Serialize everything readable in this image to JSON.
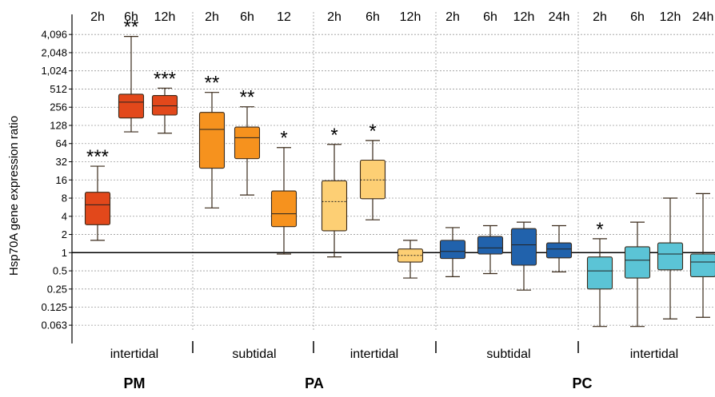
{
  "chart_data": {
    "type": "box",
    "ylabel": "Hsp70A gene expression ratio",
    "yscale": "log2",
    "ylim": [
      0.0452,
      6500
    ],
    "yticks": [
      {
        "value": 4096,
        "label": "4,096"
      },
      {
        "value": 2048,
        "label": "2,048"
      },
      {
        "value": 1024,
        "label": "1,024"
      },
      {
        "value": 512,
        "label": "512"
      },
      {
        "value": 256,
        "label": "256"
      },
      {
        "value": 128,
        "label": "128"
      },
      {
        "value": 64,
        "label": "64"
      },
      {
        "value": 32,
        "label": "32"
      },
      {
        "value": 16,
        "label": "16"
      },
      {
        "value": 8,
        "label": "8"
      },
      {
        "value": 4,
        "label": "4"
      },
      {
        "value": 2,
        "label": "2"
      },
      {
        "value": 1,
        "label": "1"
      },
      {
        "value": 0.5,
        "label": "0.5"
      },
      {
        "value": 0.25,
        "label": "0.25"
      },
      {
        "value": 0.125,
        "label": "0.125"
      },
      {
        "value": 0.063,
        "label": "0.063"
      }
    ],
    "reference_line": 1,
    "grid": true,
    "groups": [
      {
        "species": "PM",
        "habitat": "intertidal",
        "color": "#e2481b",
        "boxes": [
          {
            "time": "2h",
            "min": 1.6,
            "q1": 2.9,
            "median": 6.2,
            "q3": 10.0,
            "max": 27,
            "significance": "***"
          },
          {
            "time": "6h",
            "min": 100,
            "q1": 170,
            "median": 310,
            "q3": 420,
            "max": 3800,
            "significance": "**"
          },
          {
            "time": "12h",
            "min": 95,
            "q1": 190,
            "median": 270,
            "q3": 400,
            "max": 530,
            "significance": "***"
          }
        ]
      },
      {
        "species": "PA",
        "habitat": "subtidal",
        "color": "#f6921e",
        "boxes": [
          {
            "time": "2h",
            "min": 5.5,
            "q1": 25,
            "median": 110,
            "q3": 210,
            "max": 450,
            "significance": "**"
          },
          {
            "time": "6h",
            "min": 9,
            "q1": 36,
            "median": 80,
            "q3": 120,
            "max": 260,
            "significance": "**"
          },
          {
            "time": "12",
            "min": 0.95,
            "q1": 2.7,
            "median": 4.4,
            "q3": 10.5,
            "max": 55,
            "significance": "*"
          }
        ]
      },
      {
        "species": "PA",
        "habitat": "intertidal",
        "color": "#fdcf74",
        "median_style": "dotted",
        "boxes": [
          {
            "time": "2h",
            "min": 0.85,
            "q1": 2.3,
            "median": 7.0,
            "q3": 15.5,
            "max": 62,
            "significance": "*"
          },
          {
            "time": "6h",
            "min": 3.5,
            "q1": 7.8,
            "median": 16,
            "q3": 34,
            "max": 72,
            "significance": "*"
          },
          {
            "time": "12h",
            "min": 0.38,
            "q1": 0.7,
            "median": 0.9,
            "q3": 1.15,
            "max": 1.6,
            "significance": ""
          }
        ]
      },
      {
        "species": "PC",
        "habitat": "subtidal",
        "color": "#2162ac",
        "boxes": [
          {
            "time": "2h",
            "min": 0.4,
            "q1": 0.8,
            "median": 1.05,
            "q3": 1.6,
            "max": 2.6,
            "significance": ""
          },
          {
            "time": "6h",
            "min": 0.45,
            "q1": 0.95,
            "median": 1.2,
            "q3": 1.85,
            "max": 2.8,
            "significance": ""
          },
          {
            "time": "12h",
            "min": 0.24,
            "q1": 0.62,
            "median": 1.35,
            "q3": 2.5,
            "max": 3.2,
            "significance": ""
          },
          {
            "time": "24h",
            "min": 0.48,
            "q1": 0.82,
            "median": 1.15,
            "q3": 1.45,
            "max": 2.8,
            "significance": ""
          }
        ]
      },
      {
        "species": "PC",
        "habitat": "intertidal",
        "color": "#5bc4d6",
        "boxes": [
          {
            "time": "2h",
            "min": 0.06,
            "q1": 0.25,
            "median": 0.5,
            "q3": 0.85,
            "max": 1.7,
            "significance": "*"
          },
          {
            "time": "6h",
            "min": 0.06,
            "q1": 0.38,
            "median": 0.75,
            "q3": 1.25,
            "max": 3.2,
            "significance": ""
          },
          {
            "time": "12h",
            "min": 0.08,
            "q1": 0.52,
            "median": 0.95,
            "q3": 1.45,
            "max": 8,
            "significance": ""
          },
          {
            "time": "24h",
            "min": 0.085,
            "q1": 0.4,
            "median": 0.7,
            "q3": 0.95,
            "max": 9.5,
            "significance": ""
          }
        ]
      }
    ],
    "species_labels": [
      "PM",
      "PA",
      "PC"
    ]
  }
}
